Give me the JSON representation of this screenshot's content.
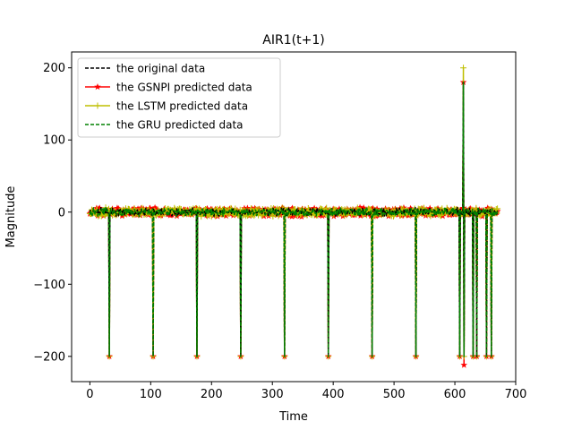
{
  "chart_data": {
    "type": "line",
    "title": "AIR1(t+1)",
    "xlabel": "Time",
    "ylabel": "Magnitude",
    "xlim": [
      -30,
      700
    ],
    "ylim": [
      -235,
      222
    ],
    "xticks": [
      0,
      100,
      200,
      300,
      400,
      500,
      600,
      700
    ],
    "yticks": [
      -200,
      -100,
      0,
      100,
      200
    ],
    "grid": false,
    "legend_position": "upper-left",
    "series": [
      {
        "name": "the original data",
        "color": "#000000",
        "style": "dashed",
        "marker": "none"
      },
      {
        "name": "the GSNPI predicted data",
        "color": "#ff0000",
        "style": "solid",
        "marker": "star"
      },
      {
        "name": "the LSTM predicted data",
        "color": "#bfbf00",
        "style": "solid",
        "marker": "plus"
      },
      {
        "name": "the GRU predicted data",
        "color": "#008000",
        "style": "dashed",
        "marker": "none"
      }
    ],
    "x_range": [
      0,
      670
    ],
    "baseline_level": 0,
    "dropouts": [
      {
        "x": 32,
        "value": -200
      },
      {
        "x": 104,
        "value": -200
      },
      {
        "x": 176,
        "value": -200
      },
      {
        "x": 248,
        "value": -200
      },
      {
        "x": 320,
        "value": -200
      },
      {
        "x": 392,
        "value": -200
      },
      {
        "x": 464,
        "value": -200
      },
      {
        "x": 536,
        "value": -200
      },
      {
        "x": 608,
        "value": -200
      },
      {
        "x": 615,
        "value": -212
      },
      {
        "x": 630,
        "value": -200
      },
      {
        "x": 636,
        "value": -200
      },
      {
        "x": 652,
        "value": -200
      },
      {
        "x": 660,
        "value": -200
      }
    ],
    "spikes": [
      {
        "x": 614,
        "original": 180,
        "gsnpi": 180,
        "lstm": 200,
        "gru": 180
      }
    ]
  }
}
